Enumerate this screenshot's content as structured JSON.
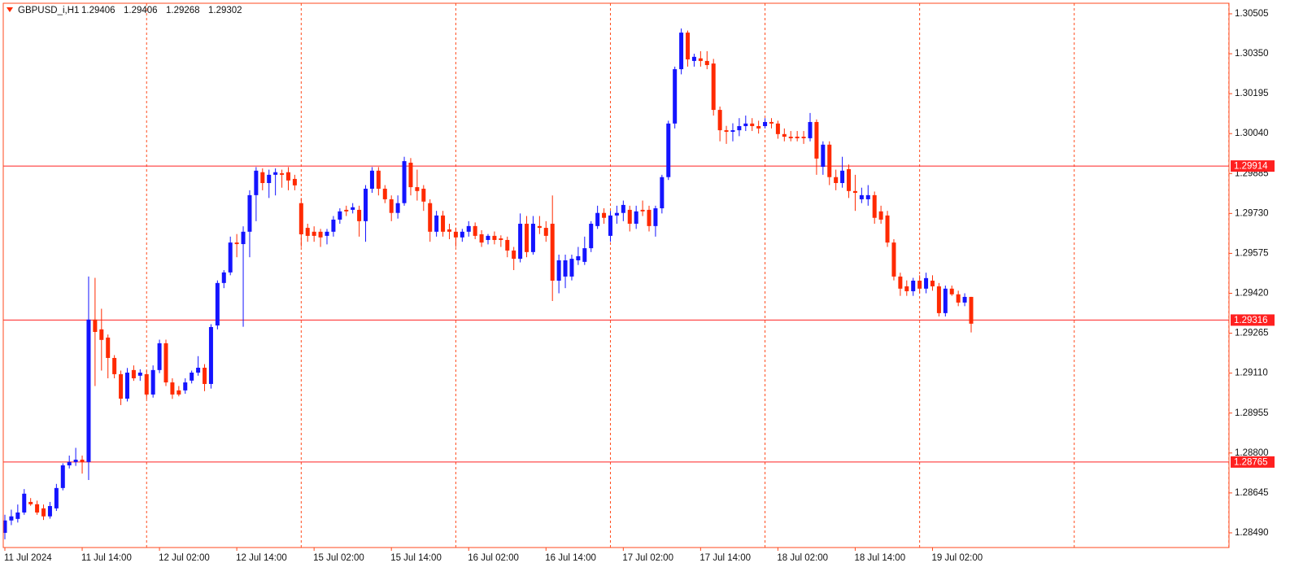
{
  "chart_data": {
    "type": "candlestick",
    "symbol": "GBPUSD_i,H1",
    "up_color": "#1414ff",
    "down_color": "#ff2a00",
    "axis_color": "#ff4a1c",
    "line_color": "#ff2020",
    "grid": true,
    "ylim": [
      1.28433,
      1.30546
    ],
    "yticks": [
      1.30505,
      {
        "value": 1.3035,
        "label": "1.30350"
      },
      1.30195,
      {
        "value": 1.3004,
        "label": "1.30040"
      },
      1.29885,
      {
        "value": 1.2973,
        "label": "1.29730"
      },
      1.29575,
      {
        "value": 1.2942,
        "label": "1.29420"
      },
      1.29265,
      {
        "value": 1.2911,
        "label": "1.29110"
      },
      1.28955,
      {
        "value": 1.288,
        "label": "1.28800"
      },
      1.28645,
      {
        "value": 1.2849,
        "label": "1.28490"
      }
    ],
    "hlines": [
      1.29914,
      1.29316,
      1.28765
    ],
    "categories": [
      "11 Jul 2024",
      null,
      null,
      null,
      null,
      null,
      null,
      null,
      null,
      null,
      null,
      null,
      "11 Jul 14:00",
      null,
      null,
      null,
      null,
      null,
      null,
      null,
      null,
      null,
      null,
      null,
      "12 Jul 02:00",
      null,
      null,
      null,
      null,
      null,
      null,
      null,
      null,
      null,
      null,
      null,
      "12 Jul 14:00",
      null,
      null,
      null,
      null,
      null,
      null,
      null,
      null,
      null,
      null,
      null,
      "15 Jul 02:00",
      null,
      null,
      null,
      null,
      null,
      null,
      null,
      null,
      null,
      null,
      null,
      "15 Jul 14:00",
      null,
      null,
      null,
      null,
      null,
      null,
      null,
      null,
      null,
      null,
      null,
      "16 Jul 02:00",
      null,
      null,
      null,
      null,
      null,
      null,
      null,
      null,
      null,
      null,
      null,
      "16 Jul 14:00",
      null,
      null,
      null,
      null,
      null,
      null,
      null,
      null,
      null,
      null,
      null,
      "17 Jul 02:00",
      null,
      null,
      null,
      null,
      null,
      null,
      null,
      null,
      null,
      null,
      null,
      "17 Jul 14:00",
      null,
      null,
      null,
      null,
      null,
      null,
      null,
      null,
      null,
      null,
      null,
      "18 Jul 02:00",
      null,
      null,
      null,
      null,
      null,
      null,
      null,
      null,
      null,
      null,
      null,
      "18 Jul 14:00",
      null,
      null,
      null,
      null,
      null,
      null,
      null,
      null,
      null,
      null,
      null,
      "19 Jul 02:00",
      null,
      null,
      null,
      null,
      null,
      null
    ],
    "ohlc": [
      [
        1.2849,
        1.2856,
        1.28465,
        1.28538
      ],
      [
        1.28538,
        1.2858,
        1.2852,
        1.28554
      ],
      [
        1.28544,
        1.286,
        1.2853,
        1.28569
      ],
      [
        1.28569,
        1.2866,
        1.2856,
        1.28642
      ],
      [
        1.2861,
        1.28625,
        1.28595,
        1.28601
      ],
      [
        1.28601,
        1.28615,
        1.2856,
        1.28569
      ],
      [
        1.28585,
        1.286,
        1.2854,
        1.28554
      ],
      [
        1.28554,
        1.2861,
        1.28545,
        1.28594
      ],
      [
        1.28585,
        1.2868,
        1.28575,
        1.28664
      ],
      [
        1.28664,
        1.2876,
        1.28655,
        1.28752
      ],
      [
        1.28752,
        1.2879,
        1.2874,
        1.28765
      ],
      [
        1.28765,
        1.2882,
        1.2875,
        1.28774
      ],
      [
        1.28774,
        1.2879,
        1.2872,
        1.28765
      ],
      [
        1.28765,
        1.29485,
        1.28695,
        1.29318
      ],
      [
        1.29318,
        1.2948,
        1.2906,
        1.2927
      ],
      [
        1.2928,
        1.2936,
        1.2912,
        1.29239
      ],
      [
        1.29248,
        1.2926,
        1.2909,
        1.29169
      ],
      [
        1.29169,
        1.2918,
        1.2909,
        1.29106
      ],
      [
        1.29106,
        1.2912,
        1.28986,
        1.29011
      ],
      [
        1.29011,
        1.2913,
        1.29,
        1.29112
      ],
      [
        1.29122,
        1.2914,
        1.2908,
        1.2909
      ],
      [
        1.291,
        1.29125,
        1.2908,
        1.29112
      ],
      [
        1.29106,
        1.2912,
        1.2901,
        1.29027
      ],
      [
        1.29027,
        1.2914,
        1.29015,
        1.29122
      ],
      [
        1.29122,
        1.2924,
        1.2911,
        1.29226
      ],
      [
        1.29226,
        1.2924,
        1.2906,
        1.29074
      ],
      [
        1.29074,
        1.2909,
        1.2901,
        1.29027
      ],
      [
        1.29043,
        1.2906,
        1.2902,
        1.29027
      ],
      [
        1.29043,
        1.2909,
        1.2903,
        1.29074
      ],
      [
        1.29081,
        1.2912,
        1.2907,
        1.29112
      ],
      [
        1.29112,
        1.29176,
        1.291,
        1.29131
      ],
      [
        1.29131,
        1.29145,
        1.2904,
        1.29068
      ],
      [
        1.29068,
        1.293,
        1.2905,
        1.29289
      ],
      [
        1.29295,
        1.2947,
        1.2928,
        1.2946
      ],
      [
        1.2946,
        1.2951,
        1.2944,
        1.29501
      ],
      [
        1.29501,
        1.2964,
        1.2949,
        1.29617
      ],
      [
        1.29617,
        1.2965,
        1.2956,
        1.29611
      ],
      [
        1.29611,
        1.2968,
        1.2929,
        1.29659
      ],
      [
        1.29659,
        1.2982,
        1.2956,
        1.29801
      ],
      [
        1.29801,
        1.2991,
        1.297,
        1.29896
      ],
      [
        1.2989,
        1.29905,
        1.2982,
        1.29848
      ],
      [
        1.29848,
        1.299,
        1.2979,
        1.2988
      ],
      [
        1.2988,
        1.29905,
        1.298,
        1.2989
      ],
      [
        1.29886,
        1.299,
        1.2983,
        1.2988
      ],
      [
        1.2989,
        1.2991,
        1.2982,
        1.29858
      ],
      [
        1.29864,
        1.2988,
        1.2982,
        1.29839
      ],
      [
        1.2977,
        1.2979,
        1.296,
        1.29649
      ],
      [
        1.29674,
        1.2969,
        1.2962,
        1.29643
      ],
      [
        1.29659,
        1.2968,
        1.2962,
        1.29643
      ],
      [
        1.29659,
        1.2967,
        1.296,
        1.29637
      ],
      [
        1.29643,
        1.2967,
        1.2961,
        1.29659
      ],
      [
        1.29659,
        1.2972,
        1.2964,
        1.29706
      ],
      [
        1.29706,
        1.2975,
        1.2969,
        1.29738
      ],
      [
        1.29744,
        1.2976,
        1.2972,
        1.29738
      ],
      [
        1.29744,
        1.2977,
        1.2973,
        1.29754
      ],
      [
        1.29744,
        1.2976,
        1.2964,
        1.297
      ],
      [
        1.297,
        1.2984,
        1.2962,
        1.29826
      ],
      [
        1.29826,
        1.2991,
        1.2981,
        1.29896
      ],
      [
        1.29896,
        1.2991,
        1.298,
        1.29826
      ],
      [
        1.29826,
        1.2984,
        1.2977,
        1.29785
      ],
      [
        1.29785,
        1.298,
        1.297,
        1.29732
      ],
      [
        1.29732,
        1.298,
        1.2971,
        1.2977
      ],
      [
        1.2977,
        1.2995,
        1.2976,
        1.29933
      ],
      [
        1.29927,
        1.29945,
        1.298,
        1.29832
      ],
      [
        1.29832,
        1.299,
        1.2978,
        1.29817
      ],
      [
        1.29826,
        1.2984,
        1.2974,
        1.29776
      ],
      [
        1.2977,
        1.29785,
        1.2962,
        1.29659
      ],
      [
        1.29659,
        1.2974,
        1.2964,
        1.29722
      ],
      [
        1.29722,
        1.2974,
        1.2964,
        1.29659
      ],
      [
        1.29668,
        1.2969,
        1.2963,
        1.29659
      ],
      [
        1.29659,
        1.29675,
        1.296,
        1.29637
      ],
      [
        1.29637,
        1.2967,
        1.2962,
        1.29659
      ],
      [
        1.29659,
        1.297,
        1.2964,
        1.29681
      ],
      [
        1.29681,
        1.29695,
        1.2963,
        1.29643
      ],
      [
        1.29649,
        1.29665,
        1.296,
        1.29617
      ],
      [
        1.29627,
        1.2965,
        1.2961,
        1.29643
      ],
      [
        1.29643,
        1.2966,
        1.2961,
        1.29627
      ],
      [
        1.29633,
        1.29645,
        1.296,
        1.29627
      ],
      [
        1.29627,
        1.2964,
        1.2956,
        1.29586
      ],
      [
        1.29586,
        1.296,
        1.2951,
        1.29554
      ],
      [
        1.29554,
        1.2973,
        1.2954,
        1.2969
      ],
      [
        1.2969,
        1.2972,
        1.2956,
        1.2958
      ],
      [
        1.2958,
        1.2972,
        1.2957,
        1.2969
      ],
      [
        1.29681,
        1.2972,
        1.2965,
        1.29674
      ],
      [
        1.29674,
        1.297,
        1.2962,
        1.29643
      ],
      [
        1.2969,
        1.298,
        1.2939,
        1.29469
      ],
      [
        1.29469,
        1.2957,
        1.2942,
        1.29548
      ],
      [
        1.29485,
        1.2957,
        1.2944,
        1.29548
      ],
      [
        1.29485,
        1.2957,
        1.2947,
        1.29554
      ],
      [
        1.29548,
        1.296,
        1.2953,
        1.29564
      ],
      [
        1.29542,
        1.2964,
        1.2953,
        1.29595
      ],
      [
        1.29595,
        1.297,
        1.2958,
        1.2969
      ],
      [
        1.29681,
        1.2976,
        1.2967,
        1.29732
      ],
      [
        1.29732,
        1.2975,
        1.2969,
        1.29713
      ],
      [
        1.29643,
        1.2974,
        1.2962,
        1.29722
      ],
      [
        1.29722,
        1.2976,
        1.2969,
        1.29732
      ],
      [
        1.29732,
        1.2978,
        1.297,
        1.29763
      ],
      [
        1.29744,
        1.2976,
        1.2966,
        1.2969
      ],
      [
        1.2969,
        1.2976,
        1.2967,
        1.29738
      ],
      [
        1.29744,
        1.2978,
        1.2972,
        1.29738
      ],
      [
        1.29744,
        1.2976,
        1.2966,
        1.29681
      ],
      [
        1.29681,
        1.2976,
        1.2964,
        1.2975
      ],
      [
        1.2975,
        1.2988,
        1.2973,
        1.29871
      ],
      [
        1.29871,
        1.3009,
        1.2986,
        1.30079
      ],
      [
        1.30079,
        1.303,
        1.3006,
        1.3029
      ],
      [
        1.3029,
        1.30448,
        1.3027,
        1.30432
      ],
      [
        1.30432,
        1.3044,
        1.303,
        1.30328
      ],
      [
        1.30322,
        1.3035,
        1.303,
        1.30338
      ],
      [
        1.30332,
        1.3036,
        1.303,
        1.30322
      ],
      [
        1.30322,
        1.3036,
        1.3029,
        1.30306
      ],
      [
        1.30312,
        1.3033,
        1.3011,
        1.30132
      ],
      [
        1.30132,
        1.30145,
        1.3001,
        1.30053
      ],
      [
        1.30053,
        1.3007,
        1.3,
        1.30047
      ],
      [
        1.30047,
        1.3008,
        1.3001,
        1.30053
      ],
      [
        1.30053,
        1.301,
        1.3003,
        1.30069
      ],
      [
        1.30069,
        1.3011,
        1.3005,
        1.30079
      ],
      [
        1.30079,
        1.301,
        1.3005,
        1.30069
      ],
      [
        1.30069,
        1.3009,
        1.3004,
        1.3006
      ],
      [
        1.30069,
        1.301,
        1.3006,
        1.30085
      ],
      [
        1.30085,
        1.301,
        1.3006,
        1.30079
      ],
      [
        1.30079,
        1.3009,
        1.3002,
        1.30038
      ],
      [
        1.30038,
        1.3006,
        1.3001,
        1.30028
      ],
      [
        1.30028,
        1.3005,
        1.3001,
        1.30022
      ],
      [
        1.30028,
        1.3005,
        1.3001,
        1.30022
      ],
      [
        1.30028,
        1.3005,
        1.3,
        1.30022
      ],
      [
        1.30022,
        1.3012,
        1.3001,
        1.30085
      ],
      [
        1.30085,
        1.30095,
        1.2988,
        1.29943
      ],
      [
        1.29911,
        1.3001,
        1.2988,
        1.29997
      ],
      [
        1.29997,
        1.3001,
        1.2984,
        1.29871
      ],
      [
        1.29871,
        1.299,
        1.2982,
        1.29848
      ],
      [
        1.29848,
        1.2995,
        1.2983,
        1.29896
      ],
      [
        1.29902,
        1.2992,
        1.2979,
        1.29817
      ],
      [
        1.29817,
        1.2988,
        1.2974,
        1.2981
      ],
      [
        1.29785,
        1.2983,
        1.2977,
        1.29801
      ],
      [
        1.29785,
        1.2984,
        1.2976,
        1.29801
      ],
      [
        1.29801,
        1.29815,
        1.2969,
        1.29713
      ],
      [
        1.29738,
        1.2976,
        1.2969,
        1.29706
      ],
      [
        1.29722,
        1.2974,
        1.296,
        1.29617
      ],
      [
        1.29617,
        1.2963,
        1.2947,
        1.29485
      ],
      [
        1.29485,
        1.295,
        1.2941,
        1.29438
      ],
      [
        1.29447,
        1.2947,
        1.2941,
        1.29428
      ],
      [
        1.29428,
        1.2948,
        1.2941,
        1.29469
      ],
      [
        1.29469,
        1.2949,
        1.2942,
        1.29438
      ],
      [
        1.29438,
        1.295,
        1.2942,
        1.29479
      ],
      [
        1.29469,
        1.2949,
        1.2943,
        1.29447
      ],
      [
        1.29447,
        1.2946,
        1.2933,
        1.29343
      ],
      [
        1.29343,
        1.2945,
        1.2933,
        1.29438
      ],
      [
        1.29438,
        1.2945,
        1.2941,
        1.29416
      ],
      [
        1.29416,
        1.2943,
        1.2937,
        1.29384
      ],
      [
        1.29384,
        1.2942,
        1.2937,
        1.29406
      ],
      [
        1.29406,
        1.29406,
        1.29268,
        1.29302
      ]
    ]
  }
}
